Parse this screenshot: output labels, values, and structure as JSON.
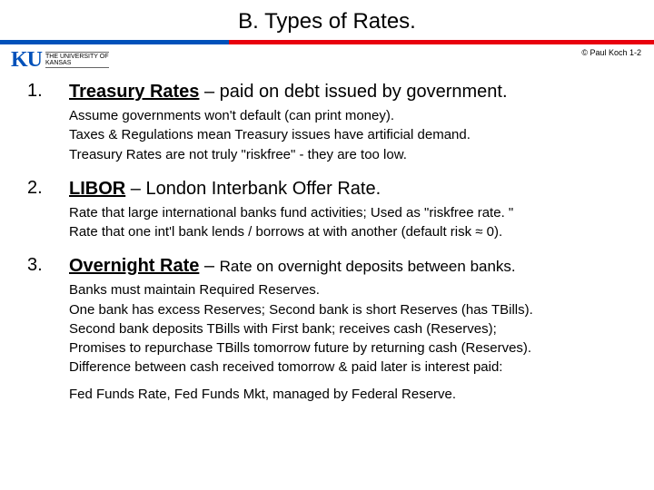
{
  "title": "B.  Types of Rates.",
  "logo": {
    "mark": "KU",
    "subtext_top": "THE UNIVERSITY OF",
    "subtext_bottom": "KANSAS"
  },
  "attribution": "© Paul Koch 1-2",
  "items": [
    {
      "num": "1.",
      "term": "Treasury Rates",
      "desc": " – paid on debt issued by government.",
      "details": [
        "Assume governments won't default  (can print money).",
        "Taxes & Regulations mean Treasury issues have artificial demand.",
        "Treasury Rates are not truly \"riskfree\"  -  they are too low."
      ]
    },
    {
      "num": "2.",
      "term": "LIBOR",
      "desc": " – London Interbank Offer Rate.",
      "details": [
        "Rate that large international banks fund activities;   Used as  \"riskfree rate. \"",
        "Rate that one int'l bank lends / borrows at with another  (default risk  ≈ 0)."
      ]
    },
    {
      "num": "3.",
      "term": "Overnight Rate",
      "desc_inline": "Rate on overnight deposits between banks.",
      "details": [
        "Banks must maintain Required Reserves.",
        "One bank has excess Reserves; Second bank is short Reserves (has TBills).",
        "Second bank deposits TBills with First bank;  receives cash (Reserves);",
        "Promises to repurchase TBills tomorrow future by returning cash (Reserves).",
        "Difference between cash received tomorrow & paid later is interest paid:"
      ],
      "footnote": "Fed Funds Rate,  Fed Funds Mkt,  managed by Federal Reserve."
    }
  ],
  "colors": {
    "ku_blue": "#0051ba",
    "crimson": "#e8000d",
    "text": "#000000",
    "bg": "#ffffff"
  }
}
